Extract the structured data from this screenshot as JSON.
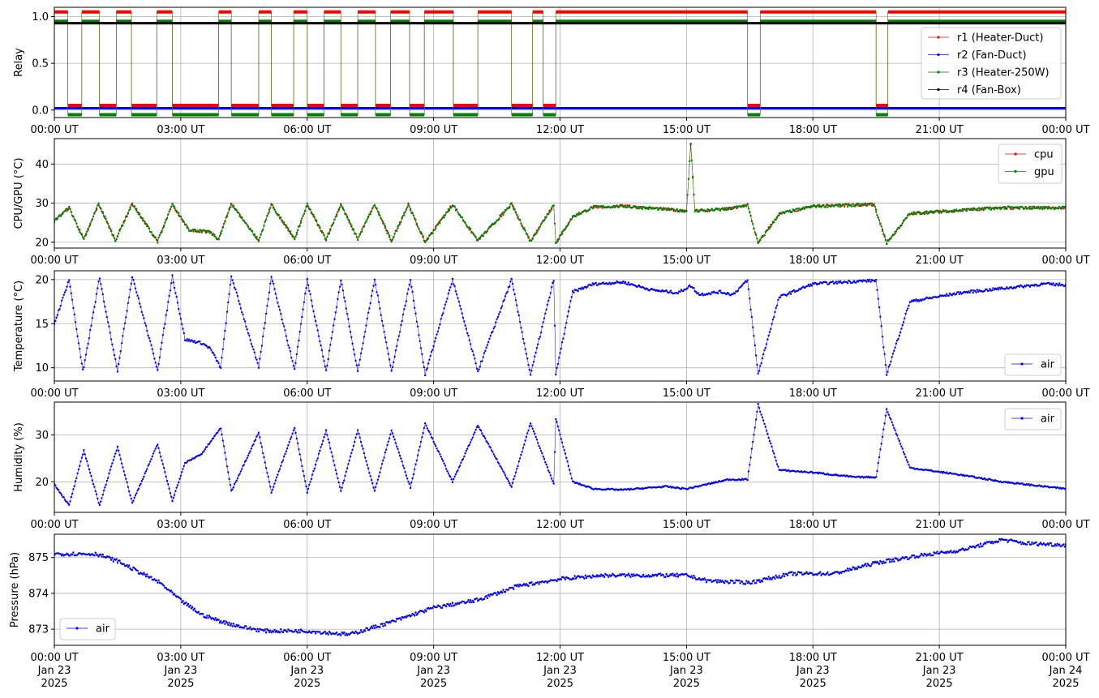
{
  "figure": {
    "x_ticks": [
      "00:00 UT",
      "03:00 UT",
      "06:00 UT",
      "09:00 UT",
      "12:00 UT",
      "15:00 UT",
      "18:00 UT",
      "21:00 UT",
      "00:00 UT"
    ],
    "x_date_line": [
      "Jan 23",
      "Jan 23",
      "Jan 23",
      "Jan 23",
      "Jan 23",
      "Jan 23",
      "Jan 23",
      "Jan 23",
      "Jan 24"
    ],
    "x_year_line": [
      "2025",
      "2025",
      "2025",
      "2025",
      "2025",
      "2025",
      "2025",
      "2025",
      "2025"
    ]
  },
  "chart_data": [
    {
      "type": "line",
      "ylabel": "Relay",
      "x_range_hours": [
        0,
        24
      ],
      "ylim": [
        -0.08,
        1.1
      ],
      "yticks": [
        0.0,
        0.5,
        1.0
      ],
      "grid": true,
      "legend": "right",
      "note_values": "relay state per series over time; ON-intervals listed in hours UT",
      "series": [
        {
          "name": "r1 (Heater-Duct)",
          "color": "#ff0000",
          "on_level": 1.05,
          "off_level": 0.05
        },
        {
          "name": "r2 (Fan-Duct)",
          "color": "#0000ff",
          "constant": 0.02
        },
        {
          "name": "r3 (Heater-250W)",
          "color": "#008000",
          "on_level": 0.95,
          "off_level": -0.05
        },
        {
          "name": "r4 (Fan-Box)",
          "color": "#000000",
          "constant": 0.93
        }
      ],
      "on_intervals": [
        [
          0.0,
          0.32
        ],
        [
          0.65,
          1.07
        ],
        [
          1.47,
          1.83
        ],
        [
          2.43,
          2.8
        ],
        [
          3.9,
          4.2
        ],
        [
          4.85,
          5.15
        ],
        [
          5.68,
          6.0
        ],
        [
          6.4,
          6.8
        ],
        [
          7.2,
          7.62
        ],
        [
          7.98,
          8.43
        ],
        [
          8.78,
          9.47
        ],
        [
          10.05,
          10.85
        ],
        [
          11.35,
          11.6
        ],
        [
          11.9,
          16.45
        ],
        [
          16.75,
          19.5
        ],
        [
          19.78,
          24.0
        ]
      ]
    },
    {
      "type": "line",
      "ylabel": "CPU/GPU (°C)",
      "x_range_hours": [
        0,
        24
      ],
      "ylim": [
        18.5,
        46.5
      ],
      "yticks": [
        20,
        30,
        40
      ],
      "grid": true,
      "legend": "top-right",
      "series": [
        {
          "name": "cpu",
          "color": "#ff0000",
          "points": [
            [
              0,
              25.5
            ],
            [
              0.35,
              28.8
            ],
            [
              0.7,
              20.6
            ],
            [
              1.05,
              29.8
            ],
            [
              1.45,
              20.5
            ],
            [
              1.85,
              29.8
            ],
            [
              2.45,
              20.2
            ],
            [
              2.8,
              29.6
            ],
            [
              3.2,
              23.2
            ],
            [
              3.7,
              22.5
            ],
            [
              3.9,
              20.7
            ],
            [
              4.2,
              29.8
            ],
            [
              4.85,
              20.4
            ],
            [
              5.15,
              29.6
            ],
            [
              5.7,
              20.8
            ],
            [
              6.0,
              29.6
            ],
            [
              6.45,
              20.7
            ],
            [
              6.8,
              29.6
            ],
            [
              7.2,
              20.8
            ],
            [
              7.6,
              29.6
            ],
            [
              8.0,
              20.3
            ],
            [
              8.4,
              29.6
            ],
            [
              8.8,
              20.0
            ],
            [
              9.45,
              29.6
            ],
            [
              10.05,
              20.4
            ],
            [
              10.85,
              29.7
            ],
            [
              11.3,
              20.2
            ],
            [
              11.85,
              29.6
            ],
            [
              11.9,
              19.8
            ],
            [
              12.3,
              26.5
            ],
            [
              12.8,
              29.0
            ],
            [
              13.5,
              29.2
            ],
            [
              14.5,
              28.4
            ],
            [
              15.0,
              28.0
            ],
            [
              15.1,
              45.0
            ],
            [
              15.2,
              28.0
            ],
            [
              16.0,
              28.5
            ],
            [
              16.45,
              29.5
            ],
            [
              16.7,
              19.8
            ],
            [
              17.2,
              27.2
            ],
            [
              18.0,
              29.2
            ],
            [
              19.0,
              29.5
            ],
            [
              19.45,
              29.7
            ],
            [
              19.75,
              19.8
            ],
            [
              20.3,
              27.3
            ],
            [
              21.5,
              28.2
            ],
            [
              22.5,
              28.8
            ],
            [
              24.0,
              28.8
            ]
          ]
        },
        {
          "name": "gpu",
          "color": "#008000",
          "points": [
            [
              0,
              25.5
            ],
            [
              0.35,
              28.8
            ],
            [
              0.7,
              20.6
            ],
            [
              1.05,
              29.8
            ],
            [
              1.45,
              20.5
            ],
            [
              1.85,
              29.8
            ],
            [
              2.45,
              20.2
            ],
            [
              2.8,
              29.6
            ],
            [
              3.2,
              23.2
            ],
            [
              3.7,
              22.5
            ],
            [
              3.9,
              20.7
            ],
            [
              4.2,
              29.8
            ],
            [
              4.85,
              20.4
            ],
            [
              5.15,
              29.6
            ],
            [
              5.7,
              20.8
            ],
            [
              6.0,
              29.6
            ],
            [
              6.45,
              20.7
            ],
            [
              6.8,
              29.6
            ],
            [
              7.2,
              20.8
            ],
            [
              7.6,
              29.6
            ],
            [
              8.0,
              20.3
            ],
            [
              8.4,
              29.6
            ],
            [
              8.8,
              20.0
            ],
            [
              9.45,
              29.6
            ],
            [
              10.05,
              20.4
            ],
            [
              10.85,
              29.7
            ],
            [
              11.3,
              20.2
            ],
            [
              11.85,
              29.6
            ],
            [
              11.9,
              19.8
            ],
            [
              12.3,
              26.5
            ],
            [
              12.8,
              29.0
            ],
            [
              13.5,
              29.2
            ],
            [
              14.5,
              28.4
            ],
            [
              15.0,
              28.0
            ],
            [
              15.1,
              45.0
            ],
            [
              15.2,
              28.0
            ],
            [
              16.0,
              28.5
            ],
            [
              16.45,
              29.5
            ],
            [
              16.7,
              19.8
            ],
            [
              17.2,
              27.2
            ],
            [
              18.0,
              29.2
            ],
            [
              19.0,
              29.5
            ],
            [
              19.45,
              29.7
            ],
            [
              19.75,
              19.8
            ],
            [
              20.3,
              27.3
            ],
            [
              21.5,
              28.2
            ],
            [
              22.5,
              28.8
            ],
            [
              24.0,
              28.8
            ]
          ]
        }
      ]
    },
    {
      "type": "line",
      "ylabel": "Temperature (°C)",
      "x_range_hours": [
        0,
        24
      ],
      "ylim": [
        8.5,
        21.0
      ],
      "yticks": [
        10,
        15,
        20
      ],
      "grid": true,
      "legend": "bottom-right",
      "series": [
        {
          "name": "air",
          "color": "#0000ff",
          "points": [
            [
              0,
              15.0
            ],
            [
              0.35,
              20.0
            ],
            [
              0.68,
              9.5
            ],
            [
              1.07,
              20.2
            ],
            [
              1.5,
              9.7
            ],
            [
              1.85,
              20.4
            ],
            [
              2.45,
              9.8
            ],
            [
              2.8,
              20.4
            ],
            [
              3.1,
              13.2
            ],
            [
              3.5,
              12.8
            ],
            [
              3.7,
              12.2
            ],
            [
              3.95,
              10.0
            ],
            [
              4.2,
              20.4
            ],
            [
              4.85,
              10.0
            ],
            [
              5.15,
              20.4
            ],
            [
              5.7,
              9.8
            ],
            [
              6.0,
              20.0
            ],
            [
              6.45,
              9.6
            ],
            [
              6.8,
              20.0
            ],
            [
              7.2,
              9.6
            ],
            [
              7.6,
              20.0
            ],
            [
              8.0,
              9.6
            ],
            [
              8.45,
              20.0
            ],
            [
              8.8,
              9.2
            ],
            [
              9.45,
              20.0
            ],
            [
              10.05,
              9.6
            ],
            [
              10.85,
              20.0
            ],
            [
              11.3,
              9.2
            ],
            [
              11.85,
              20.0
            ],
            [
              11.9,
              9.3
            ],
            [
              12.3,
              18.6
            ],
            [
              12.8,
              19.5
            ],
            [
              13.5,
              19.7
            ],
            [
              14.2,
              18.8
            ],
            [
              14.8,
              18.5
            ],
            [
              15.1,
              19.3
            ],
            [
              15.3,
              18.3
            ],
            [
              15.8,
              18.6
            ],
            [
              16.1,
              18.3
            ],
            [
              16.45,
              19.9
            ],
            [
              16.7,
              9.3
            ],
            [
              17.2,
              18.0
            ],
            [
              18.0,
              19.5
            ],
            [
              19.0,
              19.8
            ],
            [
              19.5,
              19.9
            ],
            [
              19.75,
              9.3
            ],
            [
              20.3,
              17.5
            ],
            [
              21.5,
              18.5
            ],
            [
              22.5,
              19.0
            ],
            [
              23.5,
              19.5
            ],
            [
              24.0,
              19.4
            ]
          ]
        }
      ]
    },
    {
      "type": "line",
      "ylabel": "Humidity (%)",
      "x_range_hours": [
        0,
        24
      ],
      "ylim": [
        13.5,
        37.0
      ],
      "yticks": [
        20,
        30
      ],
      "grid": true,
      "legend": "top-right",
      "series": [
        {
          "name": "air",
          "color": "#0000ff",
          "points": [
            [
              0,
              19.5
            ],
            [
              0.35,
              15.0
            ],
            [
              0.7,
              26.7
            ],
            [
              1.07,
              15.0
            ],
            [
              1.5,
              27.5
            ],
            [
              1.85,
              15.5
            ],
            [
              2.45,
              28.0
            ],
            [
              2.8,
              16.0
            ],
            [
              3.1,
              24.0
            ],
            [
              3.5,
              26.0
            ],
            [
              3.95,
              31.5
            ],
            [
              4.2,
              18.0
            ],
            [
              4.85,
              30.5
            ],
            [
              5.15,
              17.8
            ],
            [
              5.7,
              31.5
            ],
            [
              6.0,
              17.8
            ],
            [
              6.45,
              31.0
            ],
            [
              6.8,
              18.0
            ],
            [
              7.2,
              31.0
            ],
            [
              7.6,
              18.0
            ],
            [
              8.0,
              31.0
            ],
            [
              8.45,
              18.8
            ],
            [
              8.8,
              32.5
            ],
            [
              9.45,
              20.0
            ],
            [
              10.05,
              32.0
            ],
            [
              10.85,
              19.0
            ],
            [
              11.3,
              32.5
            ],
            [
              11.85,
              19.5
            ],
            [
              11.9,
              33.5
            ],
            [
              12.3,
              20.0
            ],
            [
              12.8,
              18.5
            ],
            [
              13.5,
              18.3
            ],
            [
              14.5,
              19.0
            ],
            [
              15.0,
              18.5
            ],
            [
              16.0,
              20.5
            ],
            [
              16.45,
              20.5
            ],
            [
              16.7,
              36.5
            ],
            [
              17.2,
              22.5
            ],
            [
              18.0,
              22.0
            ],
            [
              19.0,
              21.0
            ],
            [
              19.5,
              21.0
            ],
            [
              19.75,
              35.5
            ],
            [
              20.3,
              23.0
            ],
            [
              21.5,
              21.5
            ],
            [
              22.5,
              20.0
            ],
            [
              24.0,
              18.5
            ]
          ]
        }
      ]
    },
    {
      "type": "line",
      "ylabel": "Pressure (hPa)",
      "x_range_hours": [
        0,
        24
      ],
      "ylim": [
        872.55,
        875.65
      ],
      "yticks": [
        873,
        874,
        875
      ],
      "grid": true,
      "legend": "bottom-left",
      "series": [
        {
          "name": "air",
          "color": "#0000ff",
          "points": [
            [
              0,
              875.1
            ],
            [
              1.0,
              875.1
            ],
            [
              1.5,
              874.9
            ],
            [
              2.0,
              874.6
            ],
            [
              2.5,
              874.3
            ],
            [
              3.0,
              873.8
            ],
            [
              3.5,
              873.4
            ],
            [
              4.0,
              873.2
            ],
            [
              4.5,
              873.05
            ],
            [
              5.0,
              872.95
            ],
            [
              6.0,
              872.95
            ],
            [
              7.0,
              872.85
            ],
            [
              8.0,
              873.2
            ],
            [
              9.0,
              873.6
            ],
            [
              10.0,
              873.8
            ],
            [
              11.0,
              874.2
            ],
            [
              12.0,
              874.4
            ],
            [
              13.0,
              874.5
            ],
            [
              14.0,
              874.5
            ],
            [
              15.0,
              874.5
            ],
            [
              15.5,
              874.35
            ],
            [
              16.5,
              874.3
            ],
            [
              17.5,
              874.55
            ],
            [
              18.5,
              874.55
            ],
            [
              19.5,
              874.85
            ],
            [
              20.5,
              875.05
            ],
            [
              21.5,
              875.2
            ],
            [
              22.0,
              875.35
            ],
            [
              22.5,
              875.5
            ],
            [
              23.0,
              875.4
            ],
            [
              24.0,
              875.35
            ]
          ]
        }
      ]
    }
  ]
}
